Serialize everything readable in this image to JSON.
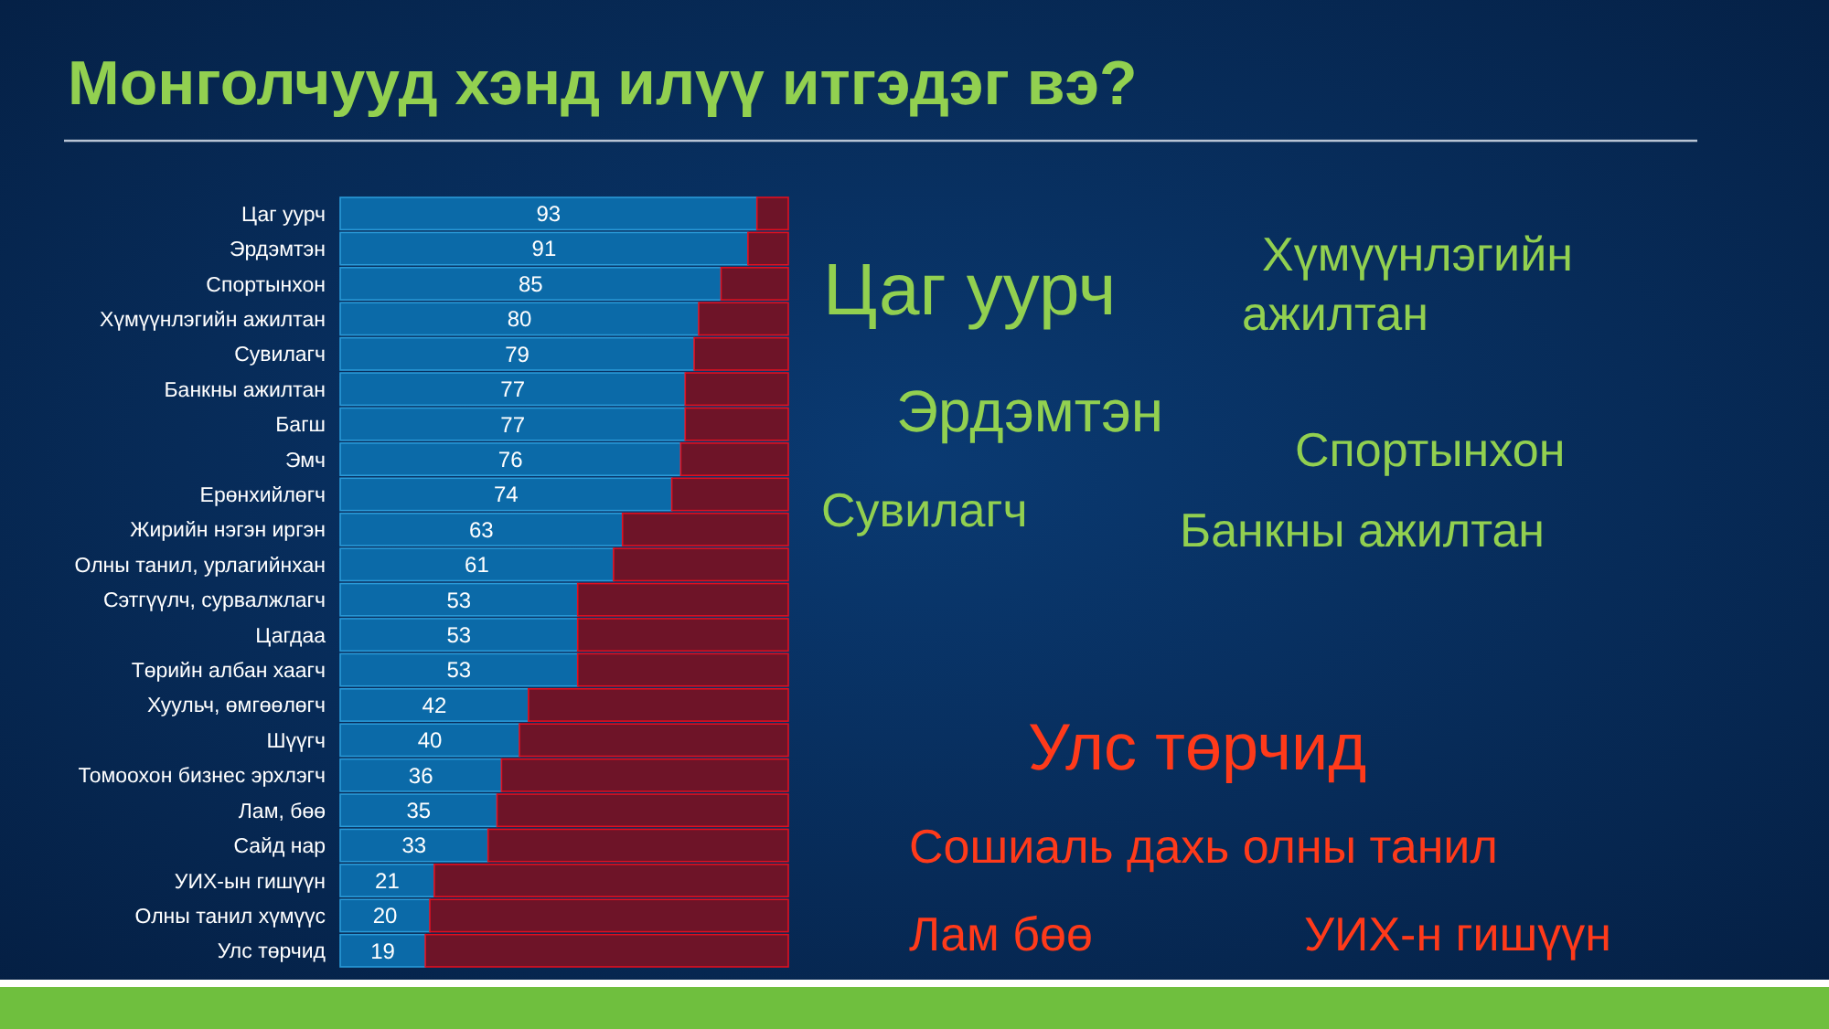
{
  "chart_data": {
    "type": "bar",
    "orientation": "horizontal",
    "stacked": true,
    "title": "Монголчууд хэнд илүү итгэдэг вэ?",
    "categories": [
      "Цаг уурч",
      "Эрдэмтэн",
      "Спортынхон",
      "Хүмүүнлэгийн ажилтан",
      "Сувилагч",
      "Банкны ажилтан",
      "Багш",
      "Эмч",
      "Ерөнхийлөгч",
      "Жирийн нэгэн иргэн",
      "Олны танил, урлагийнхан",
      "Сэтгүүлч, сурвалжлагч",
      "Цагдаа",
      "Төрийн албан хаагч",
      "Хуульч, өмгөөлөгч",
      "Шүүгч",
      "Томоохон бизнес эрхлэгч",
      "Лам, бөө",
      "Сайд нар",
      "УИХ-ын гишүүн",
      "Олны танил хүмүүс",
      "Улс төрчид"
    ],
    "series": [
      {
        "color": "#0b6aa8",
        "values": [
          93,
          91,
          85,
          80,
          79,
          77,
          77,
          76,
          74,
          63,
          61,
          53,
          53,
          53,
          42,
          40,
          36,
          35,
          33,
          21,
          20,
          19
        ],
        "value_labels": [
          "93",
          "91",
          "85",
          "80",
          "79",
          "77",
          "77",
          "76",
          "74",
          "63",
          "61",
          "53",
          "53",
          "53",
          "42",
          "40",
          "36",
          "35",
          "33",
          "21",
          "20",
          "19"
        ]
      },
      {
        "color": "#6e1428",
        "values": [
          7,
          9,
          15,
          20,
          21,
          23,
          23,
          24,
          26,
          37,
          39,
          47,
          47,
          47,
          58,
          60,
          64,
          65,
          67,
          79,
          80,
          81
        ]
      }
    ],
    "annotations": [
      "Цаг уурч",
      "Хүмүүнлэгийн ажилтан",
      "Эрдэмтэн",
      "Спортынхон",
      "Сувилагч",
      "Банкны ажилтан",
      "Улс төрчид",
      "Сошиаль дахь олны танил",
      "Лам бөө",
      "УИХ-н гишүүн"
    ]
  }
}
